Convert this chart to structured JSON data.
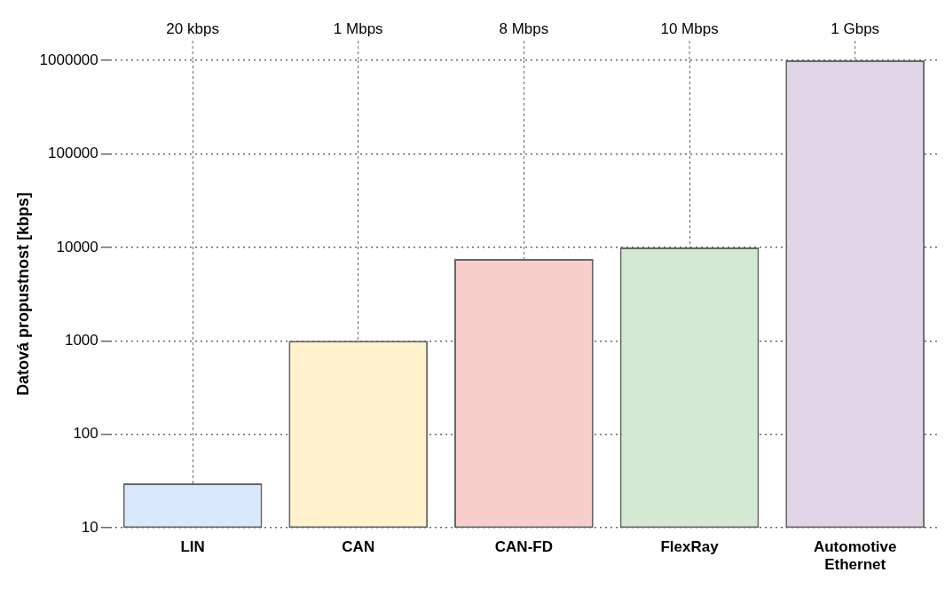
{
  "chart_data": {
    "type": "bar",
    "ylabel": "Datová propustnost [kbps]",
    "categories": [
      "LIN",
      "CAN",
      "CAN-FD",
      "FlexRay",
      "Automotive Ethernet"
    ],
    "values": [
      30,
      1000,
      7500,
      10000,
      1000000
    ],
    "colors": [
      "#dae8fc",
      "#fff2cc",
      "#f8cecc",
      "#d5e8d4",
      "#e1d5e7"
    ],
    "log": "y",
    "ylim": [
      10,
      1000000
    ],
    "yticks": [
      10,
      100,
      1000,
      10000,
      100000,
      1000000
    ],
    "grid": true,
    "legend": false,
    "annotations": [
      {
        "text": "20 kbps",
        "x": "LIN"
      },
      {
        "text": "1 Mbps",
        "x": "CAN"
      },
      {
        "text": "8 Mbps",
        "x": "CAN-FD"
      },
      {
        "text": "10 Mbps",
        "x": "FlexRay"
      },
      {
        "text": "1 Gbps",
        "x": "Automotive Ethernet"
      }
    ]
  }
}
